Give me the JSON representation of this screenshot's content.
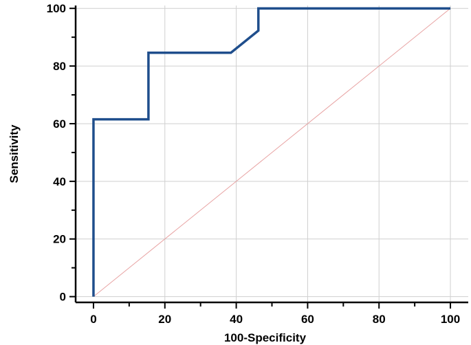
{
  "chart_data": {
    "type": "line",
    "title": "",
    "xlabel": "100-Specificity",
    "ylabel": "Sensitivity",
    "xlim": [
      -5,
      105
    ],
    "ylim": [
      -2,
      101
    ],
    "xticks": [
      0,
      20,
      40,
      60,
      80,
      100
    ],
    "yticks": [
      0,
      20,
      40,
      60,
      80,
      100
    ],
    "grid": true,
    "series": [
      {
        "name": "",
        "color": "#1f4e8c",
        "x": [
          0,
          0,
          15.4,
          15.4,
          38.5,
          46.2,
          46.2,
          100
        ],
        "y": [
          0,
          61.5,
          61.5,
          84.6,
          84.6,
          92.3,
          100,
          100
        ]
      },
      {
        "name": "",
        "color": "#e8a3a3",
        "x": [
          0,
          100
        ],
        "y": [
          0,
          100
        ]
      }
    ]
  }
}
